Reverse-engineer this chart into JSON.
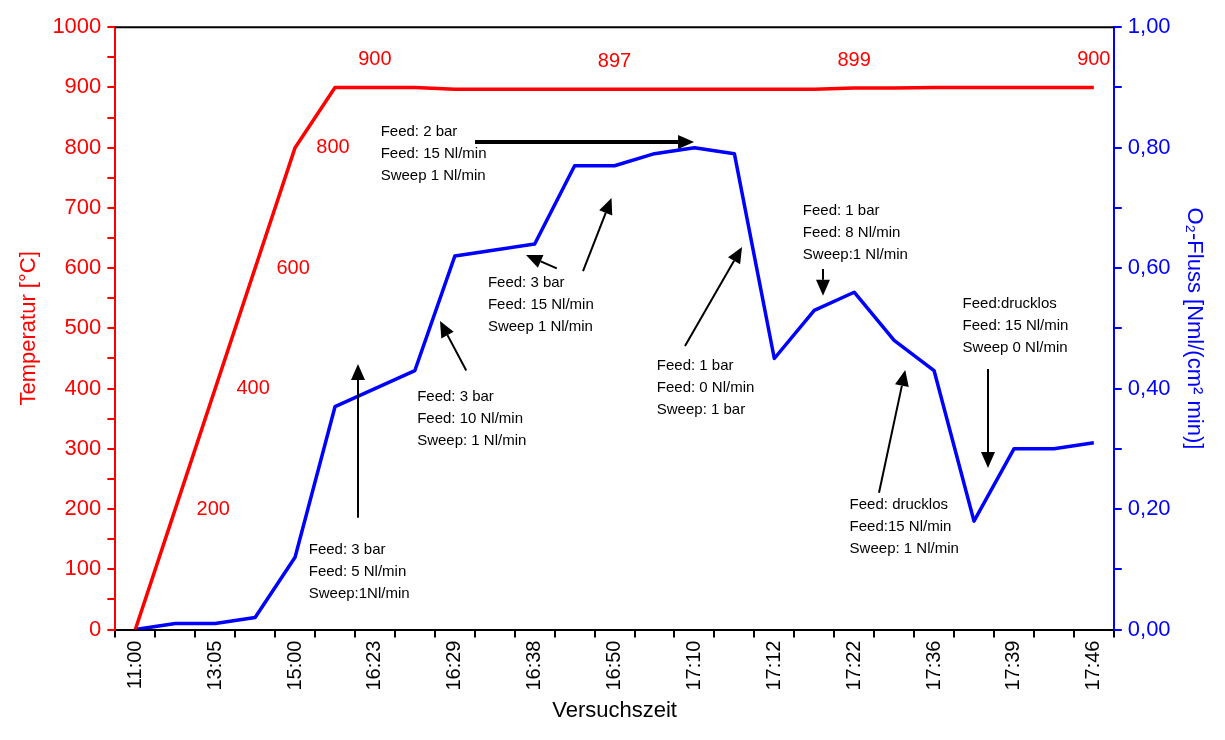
{
  "chart_data": {
    "type": "line",
    "xlabel": "Versuchszeit",
    "ylabel": "Temperatur [°C]",
    "y2label": "O₂-Fluss [Nml/(cm² min)]",
    "categories": [
      "11:00",
      null,
      "13:05",
      null,
      "15:00",
      null,
      "16:23",
      null,
      "16:29",
      null,
      "16:38",
      null,
      "16:50",
      null,
      "17:10",
      null,
      "17:12",
      null,
      "17:22",
      null,
      "17:36",
      null,
      "17:39",
      null,
      "17:46"
    ],
    "series": [
      {
        "color": "#ff0000",
        "values": [
          0,
          200,
          400,
          600,
          800,
          900,
          900,
          900,
          897,
          897,
          897,
          897,
          897,
          897,
          897,
          897,
          897,
          897,
          899,
          899,
          900,
          900,
          900,
          900,
          900
        ],
        "value_labels": [
          null,
          "200",
          "400",
          "600",
          "800",
          null,
          "900",
          null,
          null,
          null,
          null,
          null,
          "897",
          null,
          null,
          null,
          null,
          null,
          "899",
          null,
          null,
          null,
          null,
          null,
          "900"
        ]
      },
      {
        "color": "#0000ff",
        "axis": "y2",
        "values": [
          0,
          0.01,
          0.01,
          0.02,
          0.12,
          0.37,
          0.4,
          0.43,
          0.62,
          0.63,
          0.64,
          0.77,
          0.77,
          0.79,
          0.8,
          0.79,
          0.45,
          0.53,
          0.56,
          0.48,
          0.43,
          0.18,
          0.3,
          0.3,
          0.31
        ]
      }
    ],
    "ylim": [
      0,
      1000
    ],
    "yticks": [
      0,
      {
        "value": 50,
        "label": null
      },
      100,
      {
        "value": 150,
        "label": null
      },
      200,
      {
        "value": 250,
        "label": null
      },
      300,
      {
        "value": 350,
        "label": null
      },
      400,
      {
        "value": 450,
        "label": null
      },
      500,
      {
        "value": 550,
        "label": null
      },
      600,
      {
        "value": 650,
        "label": null
      },
      700,
      {
        "value": 750,
        "label": null
      },
      800,
      {
        "value": 850,
        "label": null
      },
      900,
      {
        "value": 950,
        "label": null
      },
      1000
    ],
    "y2lim": [
      0,
      1
    ],
    "y2ticks": [
      {
        "value": 0,
        "label": "0,00"
      },
      {
        "value": 0.1,
        "label": null
      },
      {
        "value": 0.2,
        "label": "0,20"
      },
      {
        "value": 0.3,
        "label": null
      },
      {
        "value": 0.4,
        "label": "0,40"
      },
      {
        "value": 0.5,
        "label": null
      },
      {
        "value": 0.6,
        "label": "0,60"
      },
      {
        "value": 0.7,
        "label": null
      },
      {
        "value": 0.8,
        "label": "0,80"
      },
      {
        "value": 0.9,
        "label": null
      },
      {
        "value": 1,
        "label": "1,00"
      }
    ],
    "grid": false,
    "legend": false,
    "annotations": [
      "Feed: 2 bar\nFeed: 15 Nl/min\nSweep 1 Nl/min",
      "Feed: 1 bar\nFeed: 8 Nl/min\nSweep:1 Nl/min",
      "Feed: 3 bar\nFeed: 15 Nl/min\nSweep 1 Nl/min",
      "Feed:drucklos\nFeed: 15 Nl/min\nSweep 0 Nl/min",
      "Feed: 1 bar\nFeed: 0 Nl/min\nSweep: 1 bar",
      "Feed: 3 bar\nFeed: 10 Nl/min\nSweep: 1 Nl/min",
      "Feed: drucklos\nFeed:15 Nl/min\nSweep: 1 Nl/min",
      "Feed: 3 bar\nFeed: 5 Nl/min\nSweep:1Nl/min"
    ]
  }
}
